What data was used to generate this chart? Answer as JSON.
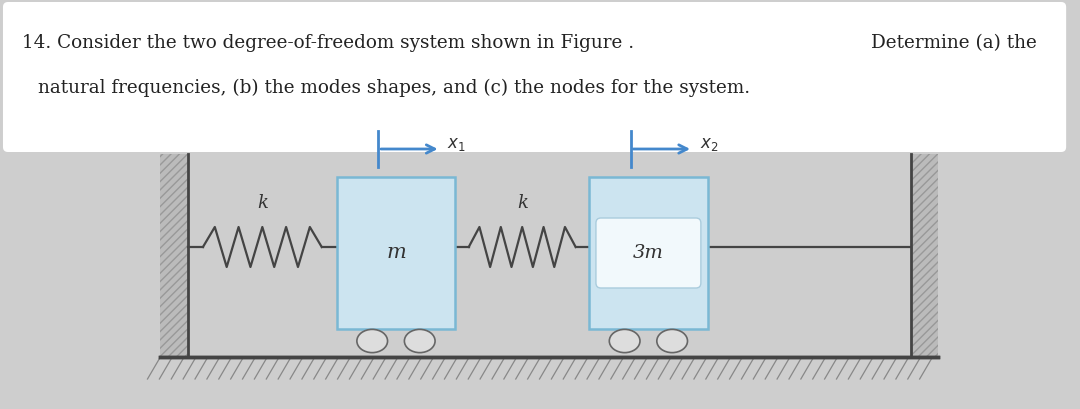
{
  "bg_color": "#cecece",
  "text_box_color": "#ffffff",
  "mass1_color": "#cce4f0",
  "mass2_color": "#cce4f0",
  "mass_edge_color": "#7ab8d4",
  "mass1_label": "m",
  "mass2_label": "3m",
  "spring1_label": "k",
  "spring2_label": "k",
  "arrow1_label": "x",
  "arrow2_label": "x",
  "arrow1_sub": "1",
  "arrow2_sub": "2",
  "arrow_color": "#4488cc",
  "line_color": "#444444",
  "wall_fill": "#bbbbbb",
  "floor_hatch_color": "#888888",
  "title_line1a": "14. Consider the two degree-of-freedom system shown in Figure .",
  "title_line1b": "Determine (a) the",
  "title_line2": "natural frequencies, (b) the modes shapes, and (c) the nodes for the system.",
  "roller_color": "#dddddd",
  "roller_ec": "#666666",
  "inner_box_color": "#f2f9fc",
  "inner_box_ec": "#aaccdd"
}
